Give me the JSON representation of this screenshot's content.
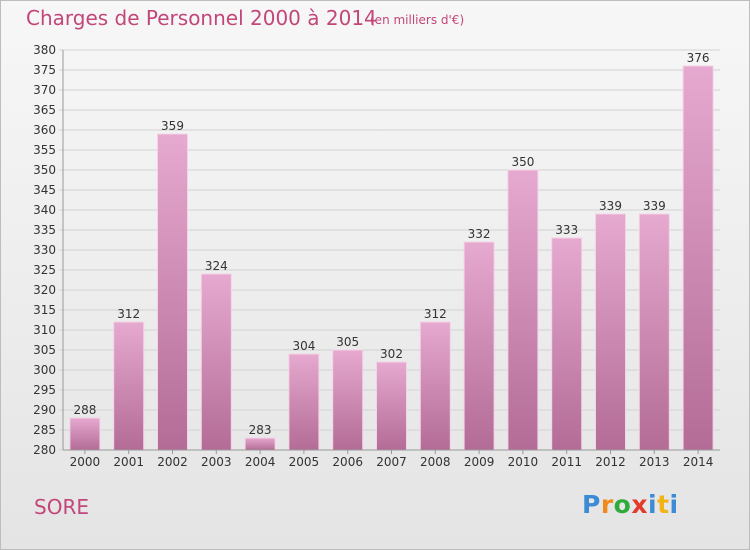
{
  "header": {
    "title": "Charges de Personnel 2000 à 2014",
    "subtitle": "(en milliers d'€)"
  },
  "footer": {
    "commune": "SORE",
    "logo_letters": [
      "P",
      "r",
      "o",
      "x",
      "i",
      "t",
      "i"
    ],
    "logo_colors": [
      "#3d8ad6",
      "#f08a1c",
      "#2faa3c",
      "#e23a2c",
      "#3d8ad6",
      "#f2b414",
      "#3d8ad6"
    ]
  },
  "colors": {
    "bar_top": "#e6a9cf",
    "bar_bottom": "#b36c96",
    "text": "#c2467a"
  },
  "chart_data": {
    "type": "bar",
    "categories": [
      "2000",
      "2001",
      "2002",
      "2003",
      "2004",
      "2005",
      "2006",
      "2007",
      "2008",
      "2009",
      "2010",
      "2011",
      "2012",
      "2013",
      "2014"
    ],
    "values": [
      288,
      312,
      359,
      324,
      283,
      304,
      305,
      302,
      312,
      332,
      350,
      333,
      339,
      339,
      376
    ],
    "title": "Charges de Personnel 2000 à 2014",
    "subtitle": "(en milliers d'€)",
    "ylim": [
      280,
      380
    ],
    "ytick_step": 5,
    "grid": true
  }
}
